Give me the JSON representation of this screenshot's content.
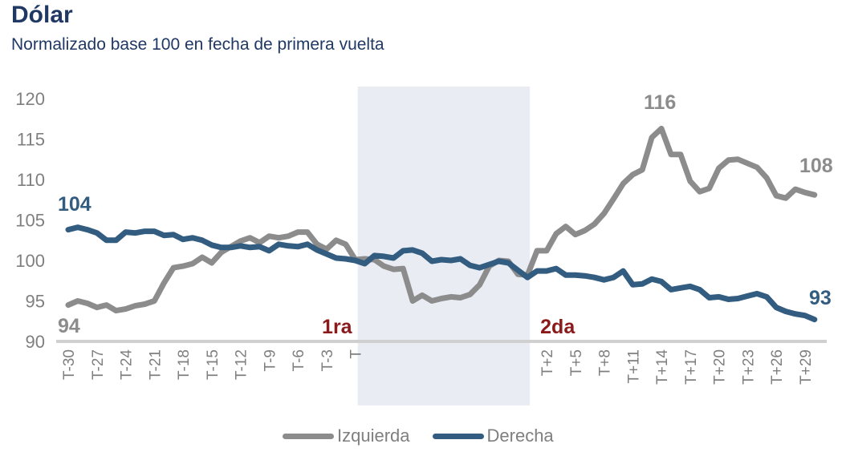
{
  "chart_data": {
    "type": "line",
    "title": "Dólar",
    "subtitle": "Normalizado base 100 en fecha de primera vuelta",
    "xlabel": "",
    "ylabel": "",
    "ylim": [
      90,
      120
    ],
    "yticks": [
      90,
      95,
      100,
      105,
      110,
      115,
      120
    ],
    "grid": false,
    "legend": "bottom",
    "x_tick_labels": [
      {
        "index": 0,
        "label": "T-30"
      },
      {
        "index": 3,
        "label": "T-27"
      },
      {
        "index": 6,
        "label": "T-24"
      },
      {
        "index": 9,
        "label": "T-21"
      },
      {
        "index": 12,
        "label": "T-18"
      },
      {
        "index": 15,
        "label": "T-15"
      },
      {
        "index": 18,
        "label": "T-12"
      },
      {
        "index": 21,
        "label": "T-9"
      },
      {
        "index": 24,
        "label": "T-6"
      },
      {
        "index": 27,
        "label": "T-3"
      },
      {
        "index": 30,
        "label": "T"
      },
      {
        "index": 50,
        "label": "T+2"
      },
      {
        "index": 53,
        "label": "T+5"
      },
      {
        "index": 56,
        "label": "T+8"
      },
      {
        "index": 59,
        "label": "T+11"
      },
      {
        "index": 62,
        "label": "T+14"
      },
      {
        "index": 65,
        "label": "T+17"
      },
      {
        "index": 68,
        "label": "T+20"
      },
      {
        "index": 71,
        "label": "T+23"
      },
      {
        "index": 74,
        "label": "T+26"
      },
      {
        "index": 77,
        "label": "T+29"
      }
    ],
    "shaded_region": {
      "from_index": 30,
      "to_index": 48,
      "color": "#e9edf3"
    },
    "round_markers": [
      {
        "label": "1ra",
        "index": 30,
        "color": "#8b1a1a"
      },
      {
        "label": "2da",
        "index": 48,
        "color": "#8b1a1a"
      }
    ],
    "series": [
      {
        "name": "Izquierda",
        "color": "#8c8c8c",
        "start_label": "94",
        "peak_label": "116",
        "end_label": "108",
        "values": [
          94.5,
          95.0,
          94.7,
          94.2,
          94.5,
          93.8,
          94.0,
          94.4,
          94.6,
          95.0,
          97.2,
          99.1,
          99.3,
          99.6,
          100.4,
          99.7,
          101.0,
          101.7,
          102.4,
          102.8,
          102.2,
          103.0,
          102.8,
          103.0,
          103.5,
          103.5,
          102.0,
          101.4,
          102.5,
          102.0,
          100.1,
          100.2,
          100.1,
          99.3,
          98.9,
          99.0,
          95.0,
          95.7,
          95.0,
          95.3,
          95.5,
          95.4,
          95.8,
          97.0,
          99.3,
          100.0,
          99.9,
          98.3,
          98.2,
          101.2,
          101.2,
          103.3,
          104.2,
          103.2,
          103.7,
          104.5,
          105.8,
          107.6,
          109.5,
          110.6,
          111.2,
          115.2,
          116.3,
          113.1,
          113.1,
          109.8,
          108.5,
          108.9,
          111.4,
          112.4,
          112.5,
          112.0,
          111.5,
          110.2,
          108.0,
          107.7,
          108.8,
          108.4,
          108.1
        ]
      },
      {
        "name": "Derecha",
        "color": "#335c81",
        "start_label": "104",
        "end_label": "93",
        "values": [
          103.8,
          104.1,
          103.8,
          103.4,
          102.5,
          102.5,
          103.5,
          103.4,
          103.6,
          103.6,
          103.1,
          103.2,
          102.6,
          102.8,
          102.5,
          101.9,
          101.6,
          101.6,
          101.8,
          101.6,
          101.7,
          101.2,
          102.0,
          101.8,
          101.7,
          102.0,
          101.3,
          100.8,
          100.3,
          100.2,
          100.0,
          99.6,
          100.6,
          100.5,
          100.3,
          101.2,
          101.3,
          100.9,
          99.9,
          100.1,
          100.0,
          100.2,
          99.4,
          99.1,
          99.5,
          99.9,
          99.7,
          98.8,
          97.9,
          98.7,
          98.7,
          99.0,
          98.2,
          98.2,
          98.1,
          97.9,
          97.6,
          97.9,
          98.7,
          97.0,
          97.1,
          97.7,
          97.4,
          96.4,
          96.6,
          96.8,
          96.4,
          95.4,
          95.5,
          95.2,
          95.3,
          95.6,
          95.9,
          95.5,
          94.2,
          93.7,
          93.4,
          93.2,
          92.7
        ]
      }
    ]
  }
}
